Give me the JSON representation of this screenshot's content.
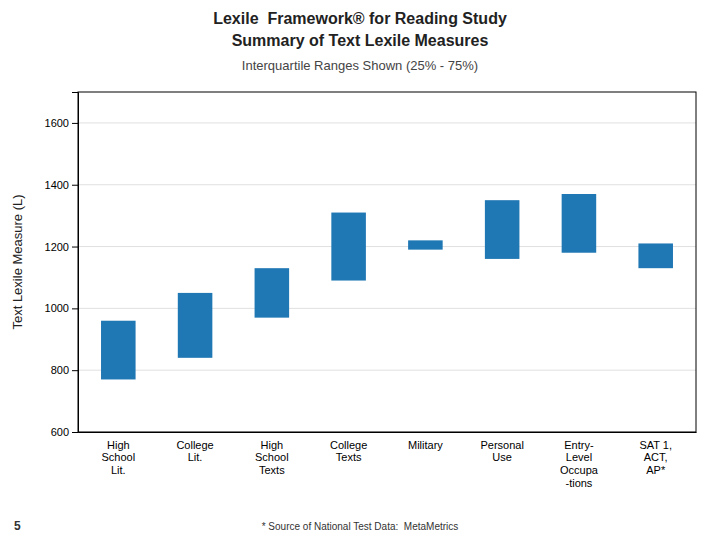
{
  "chart_data": {
    "type": "bar",
    "title": [
      "Lexile  Framework® for Reading Study",
      "Summary of Text Lexile Measures"
    ],
    "subtitle": "Interquartile Ranges Shown (25% - 75%)",
    "ylabel": "Text Lexile Measure (L)",
    "annotations": [
      "* Source of National Test Data:  MetaMetrics",
      "5"
    ],
    "categories": [
      "High\nSchool\nLit.",
      "College\nLit.",
      "High\nSchool\nTexts",
      "College\nTexts",
      "Military",
      "Personal\nUse",
      "Entry-\nLevel\nOccupa\n-tions",
      "SAT 1,\nACT,\nAP*"
    ],
    "q25": [
      770,
      840,
      970,
      1090,
      1190,
      1160,
      1180,
      1130
    ],
    "q75": [
      960,
      1050,
      1130,
      1310,
      1220,
      1350,
      1370,
      1210
    ],
    "ylim": [
      600,
      1700
    ],
    "yticks": [
      600,
      800,
      1000,
      1200,
      1400,
      1600
    ],
    "grid": true
  }
}
